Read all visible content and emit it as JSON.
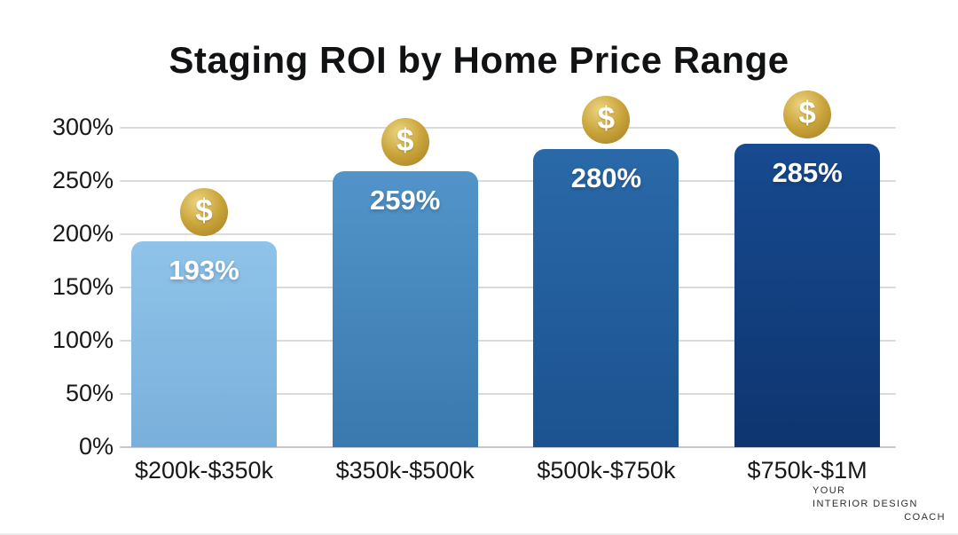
{
  "chart_data": {
    "type": "bar",
    "title": "Staging ROI by Home Price Range",
    "categories": [
      "$200k-$350k",
      "$350k-$500k",
      "$500k-$750k",
      "$750k-$1M"
    ],
    "values": [
      193,
      259,
      280,
      285
    ],
    "value_labels": [
      "193%",
      "259%",
      "280%",
      "285%"
    ],
    "xlabel": "",
    "ylabel": "",
    "ylim": [
      0,
      300
    ],
    "yticks": [
      {
        "value": 0,
        "label": "0%"
      },
      {
        "value": 50,
        "label": "50%"
      },
      {
        "value": 100,
        "label": "100%"
      },
      {
        "value": 150,
        "label": "150%"
      },
      {
        "value": 200,
        "label": "200%"
      },
      {
        "value": 250,
        "label": "250%"
      },
      {
        "value": 300,
        "label": "300%"
      }
    ],
    "grid": "horizontal",
    "legend": "none",
    "marker_icon": "dollar-coin",
    "coin_symbol": "$",
    "colors": {
      "bars": [
        {
          "top": "#8fc3e9",
          "bottom": "#79b0db"
        },
        {
          "top": "#5294c9",
          "bottom": "#3a79ae"
        },
        {
          "top": "#2a69a9",
          "bottom": "#1c5290"
        },
        {
          "top": "#174a90",
          "bottom": "#0e356f"
        },
        {
          "note": ""
        }
      ],
      "gridline": "#d9dcdf",
      "baseline": "#c3c7cb",
      "value_label": "#ffffff",
      "axis_label": "#17181a",
      "title": "#101214",
      "coin_highlight": "#ecd584",
      "coin_base": "#cba63c",
      "coin_edge": "#a27c24",
      "coin_symbol_color": "#ffffff"
    }
  },
  "brand": {
    "line1": "YOUR",
    "line2": "INTERIOR DESIGN",
    "line3": "COACH"
  }
}
